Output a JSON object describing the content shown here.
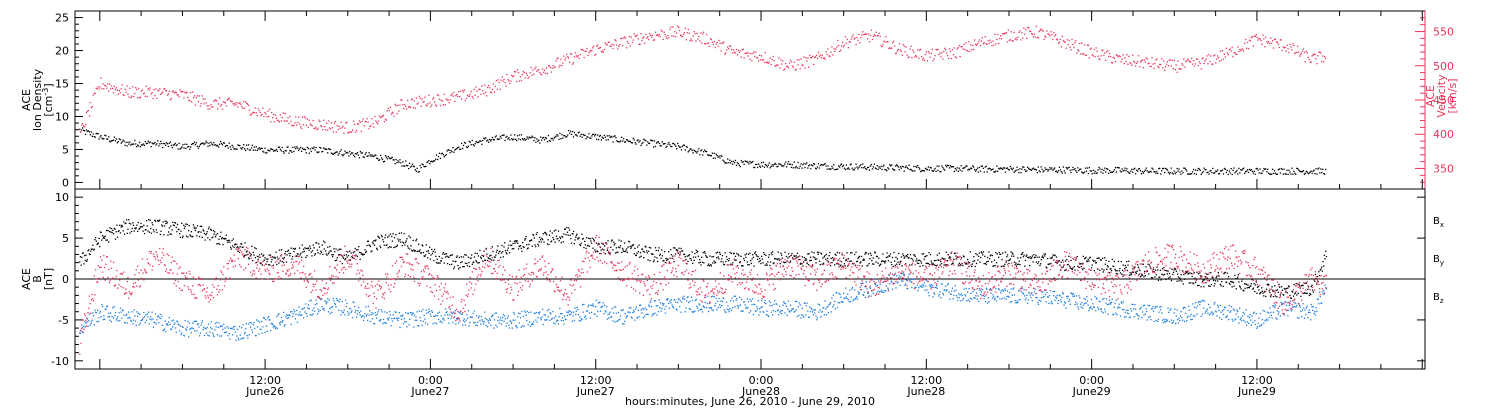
{
  "figure": {
    "xlabel": "hours:minutes, June 26, 2010 - June 29, 2010"
  },
  "colors": {
    "black": "#000000",
    "red": "#e8365d",
    "blue": "#1f7fe0"
  },
  "chart_data": [
    {
      "type": "scatter",
      "panel": "top",
      "ylabel_lines": [
        "ACE",
        "Ion Density",
        "[cm^-3]"
      ],
      "y2label_lines": [
        "ACE",
        "Velocity",
        "[km/s]"
      ],
      "ylim": [
        -1,
        26
      ],
      "yticks": [
        0,
        5,
        10,
        15,
        20,
        25
      ],
      "y2lim": [
        320,
        580
      ],
      "y2ticks": [
        350,
        400,
        450,
        500,
        550
      ],
      "xlim_hours": [
        -1.8,
        96.2
      ],
      "series": [
        {
          "axis": "left",
          "color": "#000000",
          "x": [
            -1.5,
            0,
            2,
            4,
            6,
            8,
            10,
            12,
            14,
            16,
            18,
            20,
            22,
            22.5,
            23,
            24,
            26,
            28,
            30,
            32,
            34,
            36,
            38,
            40,
            42,
            44,
            46,
            48,
            50,
            52,
            54,
            56,
            58,
            60,
            62,
            64,
            66,
            68,
            70,
            72,
            74,
            76,
            78,
            80,
            82,
            84,
            86,
            88,
            89
          ],
          "y": [
            8,
            7,
            6,
            6,
            5.5,
            6,
            5.5,
            5,
            5,
            5,
            4.5,
            4,
            3,
            2.5,
            2,
            3.5,
            5.5,
            6.5,
            7,
            6.5,
            7.5,
            7,
            6.5,
            6,
            5.5,
            4.5,
            3,
            2.8,
            2.8,
            2.6,
            2.5,
            2.4,
            2.3,
            2.2,
            2.2,
            2.1,
            2.1,
            2,
            2,
            1.9,
            1.9,
            1.8,
            1.8,
            1.8,
            1.8,
            1.8,
            1.8,
            1.8,
            1.8
          ]
        },
        {
          "axis": "right",
          "color": "#e8365d",
          "x": [
            -1.5,
            0,
            2,
            4,
            6,
            8,
            10,
            12,
            14,
            16,
            18,
            20,
            22,
            24,
            26,
            28,
            30,
            32,
            34,
            36,
            38,
            40,
            42,
            44,
            46,
            48,
            50,
            52,
            54,
            56,
            58,
            60,
            62,
            64,
            66,
            68,
            70,
            72,
            74,
            76,
            78,
            80,
            82,
            84,
            86,
            88,
            89
          ],
          "y": [
            400,
            475,
            462,
            462,
            458,
            445,
            445,
            430,
            420,
            415,
            410,
            418,
            445,
            450,
            455,
            465,
            485,
            495,
            510,
            525,
            535,
            545,
            550,
            540,
            520,
            515,
            500,
            510,
            535,
            545,
            525,
            515,
            520,
            535,
            545,
            550,
            535,
            520,
            510,
            505,
            500,
            505,
            520,
            540,
            530,
            510,
            515
          ]
        }
      ]
    },
    {
      "type": "scatter",
      "panel": "bottom",
      "ylabel_lines": [
        "ACE",
        "B",
        "[nT]"
      ],
      "ylim": [
        -11,
        11
      ],
      "yticks": [
        -10,
        -5,
        0,
        5,
        10
      ],
      "zero_line": true,
      "xlim_hours": [
        -1.8,
        96.2
      ],
      "xtick_labels": [
        {
          "time": "12:00",
          "date": "June26",
          "h": 12
        },
        {
          "time": "0:00",
          "date": "June27",
          "h": 24
        },
        {
          "time": "12:00",
          "date": "June27",
          "h": 36
        },
        {
          "time": "0:00",
          "date": "June28",
          "h": 48
        },
        {
          "time": "12:00",
          "date": "June28",
          "h": 60
        },
        {
          "time": "0:00",
          "date": "June29",
          "h": 72
        },
        {
          "time": "12:00",
          "date": "June29",
          "h": 84
        }
      ],
      "legend": {
        "placement": "right"
      },
      "series": [
        {
          "name": "B",
          "sub": "x",
          "color": "#000000",
          "x": [
            -1.5,
            0,
            2,
            4,
            6,
            8,
            10,
            12,
            14,
            16,
            18,
            20,
            22,
            24,
            26,
            28,
            30,
            32,
            34,
            36,
            38,
            40,
            42,
            44,
            46,
            48,
            50,
            52,
            54,
            56,
            58,
            60,
            62,
            64,
            66,
            68,
            70,
            72,
            74,
            76,
            78,
            80,
            82,
            84,
            86,
            88,
            89
          ],
          "y": [
            2,
            5,
            6.5,
            6.5,
            6,
            5.5,
            4,
            2.5,
            3,
            4,
            2.5,
            4.5,
            5,
            3,
            2,
            3,
            4,
            5,
            5.5,
            4,
            4,
            3,
            3,
            2.5,
            2.5,
            2.5,
            2.5,
            2.5,
            2.5,
            2.5,
            2.5,
            2.5,
            2.5,
            2.5,
            2.5,
            2.5,
            2,
            2,
            1.5,
            1,
            0.5,
            0,
            0,
            -1,
            -1.5,
            -1,
            3
          ]
        },
        {
          "name": "B",
          "sub": "y",
          "color": "#1f7fe0",
          "x": [
            -1.5,
            0,
            2,
            4,
            6,
            8,
            10,
            12,
            14,
            16,
            18,
            20,
            22,
            24,
            26,
            28,
            30,
            32,
            34,
            36,
            38,
            40,
            42,
            44,
            46,
            48,
            50,
            52,
            54,
            56,
            58,
            60,
            62,
            64,
            66,
            68,
            70,
            72,
            74,
            76,
            78,
            80,
            82,
            84,
            86,
            88,
            89
          ],
          "y": [
            -6,
            -4,
            -4.5,
            -5,
            -6,
            -6,
            -6.5,
            -5.5,
            -4.5,
            -3,
            -3.5,
            -4.5,
            -5,
            -4.5,
            -4.5,
            -5,
            -5,
            -4.5,
            -4.5,
            -3.5,
            -4.5,
            -3.5,
            -3,
            -3,
            -3,
            -3.5,
            -3.5,
            -4,
            -2,
            -1,
            0,
            -1,
            -1.5,
            -2,
            -2,
            -2,
            -2.5,
            -3,
            -3.5,
            -4,
            -4.5,
            -3.5,
            -4,
            -5,
            -3.5,
            -4,
            -1
          ]
        },
        {
          "name": "B",
          "sub": "z",
          "color": "#e8365d",
          "x": [
            -1.5,
            0,
            2,
            4,
            6,
            8,
            10,
            12,
            14,
            16,
            18,
            20,
            22,
            24,
            26,
            28,
            30,
            32,
            34,
            36,
            38,
            40,
            42,
            44,
            46,
            48,
            50,
            52,
            54,
            56,
            58,
            60,
            62,
            64,
            66,
            68,
            70,
            72,
            74,
            76,
            78,
            80,
            82,
            84,
            86,
            88,
            89
          ],
          "y": [
            -8,
            2,
            -1,
            3,
            0,
            -2,
            3,
            1,
            2,
            -1,
            3,
            -2,
            2,
            0,
            -4,
            3,
            -1,
            2,
            -2,
            4,
            1,
            -1,
            2,
            -2,
            1,
            -1,
            2,
            0,
            2,
            -1,
            1,
            0,
            2,
            -1,
            1,
            -1,
            2,
            0,
            -1,
            2,
            3,
            1,
            3,
            1,
            -3,
            0,
            -1
          ]
        }
      ]
    }
  ]
}
